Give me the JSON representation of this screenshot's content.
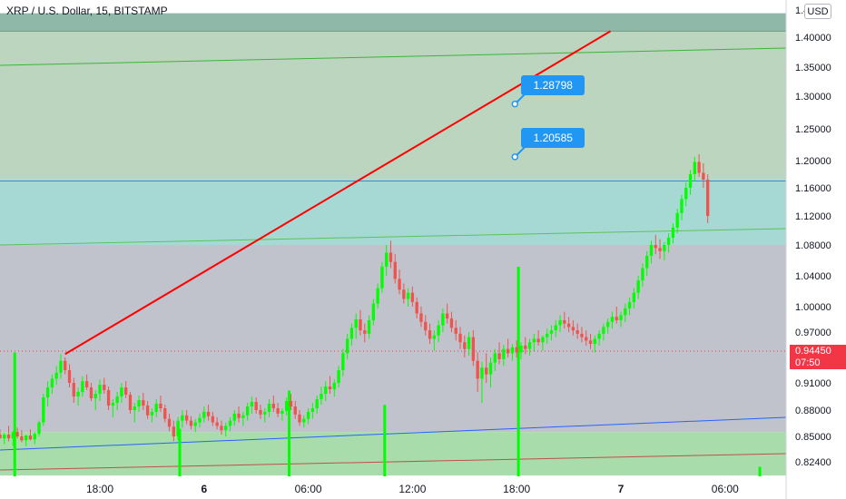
{
  "header": {
    "title": "XRP / U.S. Dollar, 15, BITSTAMP",
    "currency": "USD"
  },
  "colors": {
    "up": "#00ff00",
    "down": "#ef5350",
    "accent_red": "#ff0000",
    "label_blue": "#2196f3",
    "channel_blue": "#2962ff",
    "zone_top": "#8fb8a8",
    "zone_green": "#bcd5be",
    "zone_cyan": "#a7d9d4",
    "zone_gray": "#c0c3cb",
    "zone_bottom": "#a8dcaa"
  },
  "current_price": {
    "value": "0.94450",
    "countdown": "07:50"
  },
  "callouts": [
    {
      "label": "1.28798",
      "price": 1.28798
    },
    {
      "label": "1.20585",
      "price": 1.20585
    }
  ],
  "chart_data": {
    "type": "candlestick",
    "title": "XRP / U.S. Dollar, 15, BITSTAMP",
    "y_axis_side": "right",
    "y_ticks": [
      "1.40000",
      "1.35000",
      "1.30000",
      "1.25000",
      "1.20000",
      "1.16000",
      "1.12000",
      "1.08000",
      "1.04000",
      "1.00000",
      "0.97000",
      "0.94000",
      "0.91000",
      "0.88000",
      "0.85000",
      "0.82400"
    ],
    "y_tick_values": [
      1.4,
      1.35,
      1.3,
      1.25,
      1.2,
      1.16,
      1.12,
      1.08,
      1.04,
      1.0,
      0.97,
      0.94,
      0.91,
      0.88,
      0.85,
      0.824
    ],
    "y_tick_top_partial": "1.4",
    "x_ticks": [
      "18:00",
      "6",
      "06:00",
      "12:00",
      "18:00",
      "7",
      "06:00"
    ],
    "x_tick_hours": [
      18,
      24,
      30,
      36,
      42,
      48,
      54
    ],
    "zones": [
      {
        "from": 1.41,
        "to": 1.44,
        "color": "zone_top"
      },
      {
        "from": 1.17,
        "to": 1.41,
        "color": "zone_green"
      },
      {
        "from": 1.08,
        "to": 1.17,
        "color": "zone_cyan"
      },
      {
        "from": 0.855,
        "to": 1.08,
        "color": "zone_gray"
      },
      {
        "from": 0.81,
        "to": 0.855,
        "color": "zone_bottom"
      }
    ],
    "trend_line": {
      "color": "accent_red",
      "points": [
        [
          16.0,
          0.944
        ],
        [
          47.4,
          1.41
        ]
      ]
    },
    "callout_points": [
      [
        41.9,
        1.28798
      ],
      [
        41.9,
        1.20585
      ]
    ],
    "ohlc_hour_start": 12.0,
    "ohlc_hour_step": 0.25,
    "ohlc": [
      [
        0.85,
        0.856,
        0.846,
        0.852
      ],
      [
        0.852,
        0.858,
        0.848,
        0.848
      ],
      [
        0.848,
        0.854,
        0.842,
        0.852
      ],
      [
        0.852,
        0.862,
        0.845,
        0.848
      ],
      [
        0.848,
        0.856,
        0.84,
        0.855
      ],
      [
        0.855,
        0.86,
        0.848,
        0.85
      ],
      [
        0.85,
        0.857,
        0.844,
        0.846
      ],
      [
        0.846,
        0.852,
        0.84,
        0.851
      ],
      [
        0.851,
        0.858,
        0.846,
        0.847
      ],
      [
        0.847,
        0.855,
        0.842,
        0.853
      ],
      [
        0.853,
        0.868,
        0.85,
        0.866
      ],
      [
        0.866,
        0.898,
        0.862,
        0.894
      ],
      [
        0.894,
        0.912,
        0.884,
        0.905
      ],
      [
        0.905,
        0.92,
        0.898,
        0.915
      ],
      [
        0.915,
        0.93,
        0.908,
        0.922
      ],
      [
        0.922,
        0.944,
        0.915,
        0.936
      ],
      [
        0.936,
        0.94,
        0.92,
        0.925
      ],
      [
        0.925,
        0.932,
        0.905,
        0.91
      ],
      [
        0.91,
        0.916,
        0.888,
        0.895
      ],
      [
        0.895,
        0.905,
        0.885,
        0.9
      ],
      [
        0.9,
        0.918,
        0.895,
        0.912
      ],
      [
        0.912,
        0.92,
        0.902,
        0.905
      ],
      [
        0.905,
        0.91,
        0.89,
        0.893
      ],
      [
        0.893,
        0.902,
        0.88,
        0.898
      ],
      [
        0.898,
        0.914,
        0.89,
        0.908
      ],
      [
        0.908,
        0.916,
        0.898,
        0.902
      ],
      [
        0.902,
        0.906,
        0.88,
        0.885
      ],
      [
        0.885,
        0.892,
        0.872,
        0.888
      ],
      [
        0.888,
        0.9,
        0.88,
        0.895
      ],
      [
        0.895,
        0.91,
        0.888,
        0.905
      ],
      [
        0.905,
        0.912,
        0.893,
        0.897
      ],
      [
        0.897,
        0.9,
        0.876,
        0.88
      ],
      [
        0.88,
        0.888,
        0.866,
        0.884
      ],
      [
        0.884,
        0.896,
        0.878,
        0.891
      ],
      [
        0.891,
        0.899,
        0.88,
        0.885
      ],
      [
        0.885,
        0.89,
        0.87,
        0.874
      ],
      [
        0.874,
        0.882,
        0.866,
        0.878
      ],
      [
        0.878,
        0.892,
        0.872,
        0.887
      ],
      [
        0.887,
        0.896,
        0.878,
        0.882
      ],
      [
        0.882,
        0.886,
        0.866,
        0.87
      ],
      [
        0.87,
        0.876,
        0.856,
        0.861
      ],
      [
        0.861,
        0.868,
        0.845,
        0.85
      ],
      [
        0.85,
        0.872,
        0.846,
        0.868
      ],
      [
        0.868,
        0.88,
        0.86,
        0.874
      ],
      [
        0.874,
        0.88,
        0.864,
        0.868
      ],
      [
        0.868,
        0.873,
        0.858,
        0.862
      ],
      [
        0.862,
        0.87,
        0.855,
        0.866
      ],
      [
        0.866,
        0.876,
        0.86,
        0.871
      ],
      [
        0.871,
        0.884,
        0.866,
        0.878
      ],
      [
        0.878,
        0.886,
        0.868,
        0.873
      ],
      [
        0.873,
        0.878,
        0.862,
        0.866
      ],
      [
        0.866,
        0.872,
        0.858,
        0.862
      ],
      [
        0.862,
        0.868,
        0.852,
        0.857
      ],
      [
        0.857,
        0.866,
        0.85,
        0.862
      ],
      [
        0.862,
        0.872,
        0.856,
        0.868
      ],
      [
        0.868,
        0.88,
        0.862,
        0.876
      ],
      [
        0.876,
        0.884,
        0.866,
        0.871
      ],
      [
        0.871,
        0.878,
        0.862,
        0.874
      ],
      [
        0.874,
        0.888,
        0.868,
        0.884
      ],
      [
        0.884,
        0.895,
        0.876,
        0.889
      ],
      [
        0.889,
        0.894,
        0.876,
        0.88
      ],
      [
        0.88,
        0.886,
        0.87,
        0.875
      ],
      [
        0.875,
        0.882,
        0.866,
        0.878
      ],
      [
        0.878,
        0.892,
        0.872,
        0.887
      ],
      [
        0.887,
        0.896,
        0.878,
        0.882
      ],
      [
        0.882,
        0.888,
        0.872,
        0.876
      ],
      [
        0.876,
        0.882,
        0.868,
        0.879
      ],
      [
        0.879,
        0.894,
        0.874,
        0.89
      ],
      [
        0.89,
        0.898,
        0.88,
        0.884
      ],
      [
        0.884,
        0.89,
        0.87,
        0.875
      ],
      [
        0.875,
        0.88,
        0.862,
        0.866
      ],
      [
        0.866,
        0.874,
        0.86,
        0.87
      ],
      [
        0.87,
        0.882,
        0.864,
        0.878
      ],
      [
        0.878,
        0.888,
        0.87,
        0.882
      ],
      [
        0.882,
        0.896,
        0.876,
        0.892
      ],
      [
        0.892,
        0.906,
        0.886,
        0.898
      ],
      [
        0.898,
        0.912,
        0.89,
        0.906
      ],
      [
        0.906,
        0.918,
        0.898,
        0.903
      ],
      [
        0.903,
        0.914,
        0.895,
        0.91
      ],
      [
        0.91,
        0.93,
        0.905,
        0.925
      ],
      [
        0.925,
        0.95,
        0.918,
        0.945
      ],
      [
        0.945,
        0.968,
        0.938,
        0.962
      ],
      [
        0.962,
        0.98,
        0.954,
        0.975
      ],
      [
        0.975,
        0.992,
        0.962,
        0.985
      ],
      [
        0.985,
        0.996,
        0.966,
        0.972
      ],
      [
        0.972,
        0.98,
        0.958,
        0.968
      ],
      [
        0.968,
        0.99,
        0.962,
        0.984
      ],
      [
        0.984,
        1.01,
        0.978,
        1.004
      ],
      [
        1.004,
        1.03,
        0.998,
        1.024
      ],
      [
        1.024,
        1.058,
        1.018,
        1.052
      ],
      [
        1.052,
        1.08,
        1.04,
        1.07
      ],
      [
        1.07,
        1.086,
        1.05,
        1.058
      ],
      [
        1.058,
        1.068,
        1.03,
        1.036
      ],
      [
        1.036,
        1.048,
        1.016,
        1.022
      ],
      [
        1.022,
        1.03,
        1.004,
        1.01
      ],
      [
        1.01,
        1.024,
        1.0,
        1.018
      ],
      [
        1.018,
        1.026,
        1.0,
        1.006
      ],
      [
        1.006,
        1.012,
        0.986,
        0.992
      ],
      [
        0.992,
        1.0,
        0.976,
        0.982
      ],
      [
        0.982,
        0.99,
        0.966,
        0.972
      ],
      [
        0.972,
        0.98,
        0.956,
        0.962
      ],
      [
        0.962,
        0.972,
        0.948,
        0.966
      ],
      [
        0.966,
        0.984,
        0.958,
        0.978
      ],
      [
        0.978,
        0.998,
        0.97,
        0.992
      ],
      [
        0.992,
        1.004,
        0.98,
        0.986
      ],
      [
        0.986,
        0.994,
        0.97,
        0.975
      ],
      [
        0.975,
        0.984,
        0.96,
        0.968
      ],
      [
        0.968,
        0.976,
        0.95,
        0.958
      ],
      [
        0.958,
        0.966,
        0.94,
        0.95
      ],
      [
        0.95,
        0.97,
        0.942,
        0.964
      ],
      [
        0.964,
        0.972,
        0.93,
        0.936
      ],
      [
        0.936,
        0.946,
        0.9,
        0.915
      ],
      [
        0.915,
        0.935,
        0.888,
        0.928
      ],
      [
        0.928,
        0.945,
        0.91,
        0.92
      ],
      [
        0.92,
        0.94,
        0.905,
        0.934
      ],
      [
        0.934,
        0.95,
        0.924,
        0.945
      ],
      [
        0.945,
        0.958,
        0.932,
        0.938
      ],
      [
        0.938,
        0.955,
        0.93,
        0.95
      ],
      [
        0.95,
        0.962,
        0.94,
        0.945
      ],
      [
        0.945,
        0.956,
        0.936,
        0.952
      ],
      [
        0.952,
        0.96,
        0.94,
        0.946
      ],
      [
        0.946,
        0.958,
        0.938,
        0.954
      ],
      [
        0.954,
        0.964,
        0.944,
        0.95
      ],
      [
        0.95,
        0.962,
        0.942,
        0.958
      ],
      [
        0.958,
        0.968,
        0.948,
        0.962
      ],
      [
        0.962,
        0.972,
        0.954,
        0.958
      ],
      [
        0.958,
        0.966,
        0.948,
        0.964
      ],
      [
        0.964,
        0.974,
        0.956,
        0.968
      ],
      [
        0.968,
        0.978,
        0.96,
        0.972
      ],
      [
        0.972,
        0.984,
        0.964,
        0.978
      ],
      [
        0.978,
        0.99,
        0.97,
        0.984
      ],
      [
        0.984,
        0.994,
        0.974,
        0.98
      ],
      [
        0.98,
        0.988,
        0.97,
        0.976
      ],
      [
        0.976,
        0.984,
        0.966,
        0.972
      ],
      [
        0.972,
        0.98,
        0.962,
        0.968
      ],
      [
        0.968,
        0.976,
        0.958,
        0.964
      ],
      [
        0.964,
        0.972,
        0.954,
        0.96
      ],
      [
        0.96,
        0.968,
        0.95,
        0.956
      ],
      [
        0.956,
        0.966,
        0.946,
        0.962
      ],
      [
        0.962,
        0.972,
        0.954,
        0.968
      ],
      [
        0.968,
        0.98,
        0.96,
        0.976
      ],
      [
        0.976,
        0.986,
        0.968,
        0.982
      ],
      [
        0.982,
        0.994,
        0.974,
        0.988
      ],
      [
        0.988,
        1.0,
        0.98,
        0.984
      ],
      [
        0.984,
        0.994,
        0.976,
        0.99
      ],
      [
        0.99,
        1.004,
        0.982,
        0.998
      ],
      [
        0.998,
        1.012,
        0.99,
        1.006
      ],
      [
        1.006,
        1.024,
        0.998,
        1.018
      ],
      [
        1.018,
        1.04,
        1.01,
        1.034
      ],
      [
        1.034,
        1.056,
        1.026,
        1.05
      ],
      [
        1.05,
        1.072,
        1.04,
        1.066
      ],
      [
        1.066,
        1.086,
        1.056,
        1.08
      ],
      [
        1.08,
        1.094,
        1.068,
        1.076
      ],
      [
        1.076,
        1.088,
        1.062,
        1.072
      ],
      [
        1.072,
        1.084,
        1.06,
        1.08
      ],
      [
        1.08,
        1.096,
        1.07,
        1.09
      ],
      [
        1.09,
        1.11,
        1.082,
        1.104
      ],
      [
        1.104,
        1.13,
        1.096,
        1.124
      ],
      [
        1.124,
        1.15,
        1.114,
        1.144
      ],
      [
        1.144,
        1.168,
        1.134,
        1.16
      ],
      [
        1.16,
        1.186,
        1.15,
        1.18
      ],
      [
        1.18,
        1.206,
        1.17,
        1.198
      ],
      [
        1.198,
        1.21,
        1.176,
        1.182
      ],
      [
        1.182,
        1.196,
        1.16,
        1.172
      ],
      [
        1.172,
        1.18,
        1.11,
        1.12
      ]
    ],
    "volume_spikes": [
      {
        "hour": 13.1,
        "height": 0.26
      },
      {
        "hour": 22.6,
        "height": 0.1
      },
      {
        "hour": 28.9,
        "height": 0.18
      },
      {
        "hour": 34.4,
        "height": 0.15
      },
      {
        "hour": 42.1,
        "height": 0.44
      },
      {
        "hour": 56.0,
        "height": 0.02
      }
    ]
  }
}
